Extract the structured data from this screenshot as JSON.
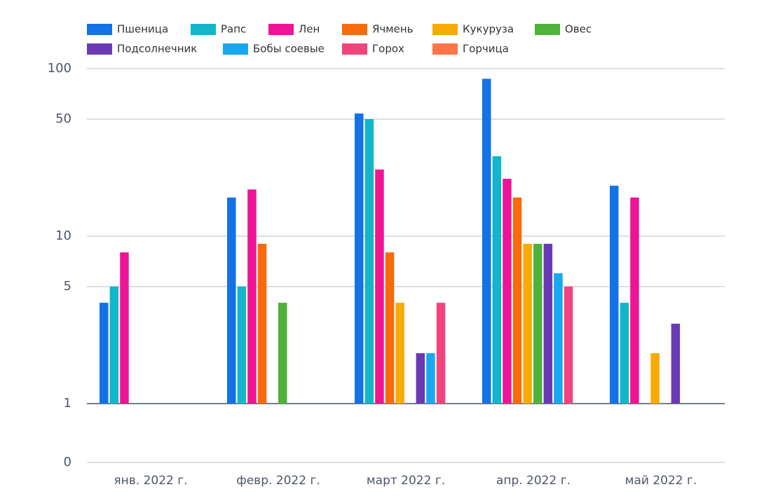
{
  "chart_data": {
    "type": "bar",
    "log_scale": true,
    "grid": true,
    "legend": "top",
    "categories": [
      "янв. 2022 г.",
      "февр. 2022 г.",
      "март 2022 г.",
      "апр. 2022 г.",
      "май 2022 г."
    ],
    "series": [
      {
        "name": "Пшеница",
        "color": "#1272e6",
        "values": [
          4,
          17,
          54,
          87,
          20
        ]
      },
      {
        "name": "Рапс",
        "color": "#12b5c9",
        "values": [
          5,
          5,
          50,
          30,
          4
        ]
      },
      {
        "name": "Лен",
        "color": "#ee1496",
        "values": [
          8,
          19,
          25,
          22,
          17
        ]
      },
      {
        "name": "Ячмень",
        "color": "#f86a0c",
        "values": [
          null,
          9,
          8,
          17,
          null
        ]
      },
      {
        "name": "Кукуруза",
        "color": "#f8aa05",
        "values": [
          null,
          null,
          4,
          9,
          2
        ]
      },
      {
        "name": "Овес",
        "color": "#4fb23a",
        "values": [
          null,
          4,
          null,
          9,
          null
        ]
      },
      {
        "name": "Подсолнечник",
        "color": "#6a3ab4",
        "values": [
          null,
          null,
          2,
          9,
          3
        ]
      },
      {
        "name": "Бобы соевые",
        "color": "#18a8f0",
        "values": [
          null,
          null,
          2,
          6,
          null
        ]
      },
      {
        "name": "Горох",
        "color": "#f2447c",
        "values": [
          null,
          null,
          4,
          5,
          null
        ]
      },
      {
        "name": "Горчица",
        "color": "#ff7547",
        "values": [
          null,
          null,
          null,
          null,
          null
        ]
      }
    ],
    "ylim": [
      0,
      100
    ],
    "yticks": [
      0,
      1,
      5,
      10,
      50,
      100
    ]
  }
}
